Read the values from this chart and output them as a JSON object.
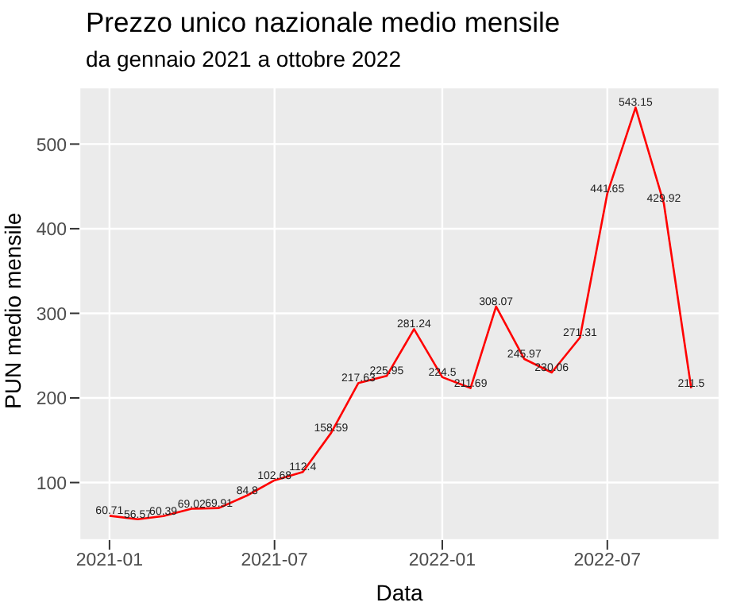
{
  "chart_data": {
    "type": "line",
    "title": "Prezzo unico nazionale medio mensile",
    "subtitle": "da  gennaio 2021 a ottobre 2022",
    "xlabel": "Data",
    "ylabel": "PUN medio mensile",
    "x": [
      "2021-01",
      "2021-02",
      "2021-03",
      "2021-04",
      "2021-05",
      "2021-06",
      "2021-07",
      "2021-08",
      "2021-09",
      "2021-10",
      "2021-11",
      "2021-12",
      "2022-01",
      "2022-02",
      "2022-03",
      "2022-04",
      "2022-05",
      "2022-06",
      "2022-07",
      "2022-08",
      "2022-09",
      "2022-10"
    ],
    "series": [
      {
        "color": "#ff0000",
        "values": [
          60.71,
          56.57,
          60.39,
          69.02,
          69.91,
          84.8,
          102.68,
          112.4,
          158.59,
          217.63,
          225.95,
          281.24,
          224.5,
          211.69,
          308.07,
          245.97,
          230.06,
          271.31,
          441.65,
          543.15,
          429.92,
          211.5
        ]
      }
    ],
    "xlim": [
      "2020-11-29",
      "2022-11-01"
    ],
    "xticks": [
      "2021-01",
      "2021-07",
      "2022-01",
      "2022-07"
    ],
    "ylim": [
      32,
      567
    ],
    "yticks": [
      100,
      200,
      300,
      400,
      500
    ],
    "grid": true,
    "data_labels": true,
    "marker": "none",
    "line_style": "solid"
  }
}
